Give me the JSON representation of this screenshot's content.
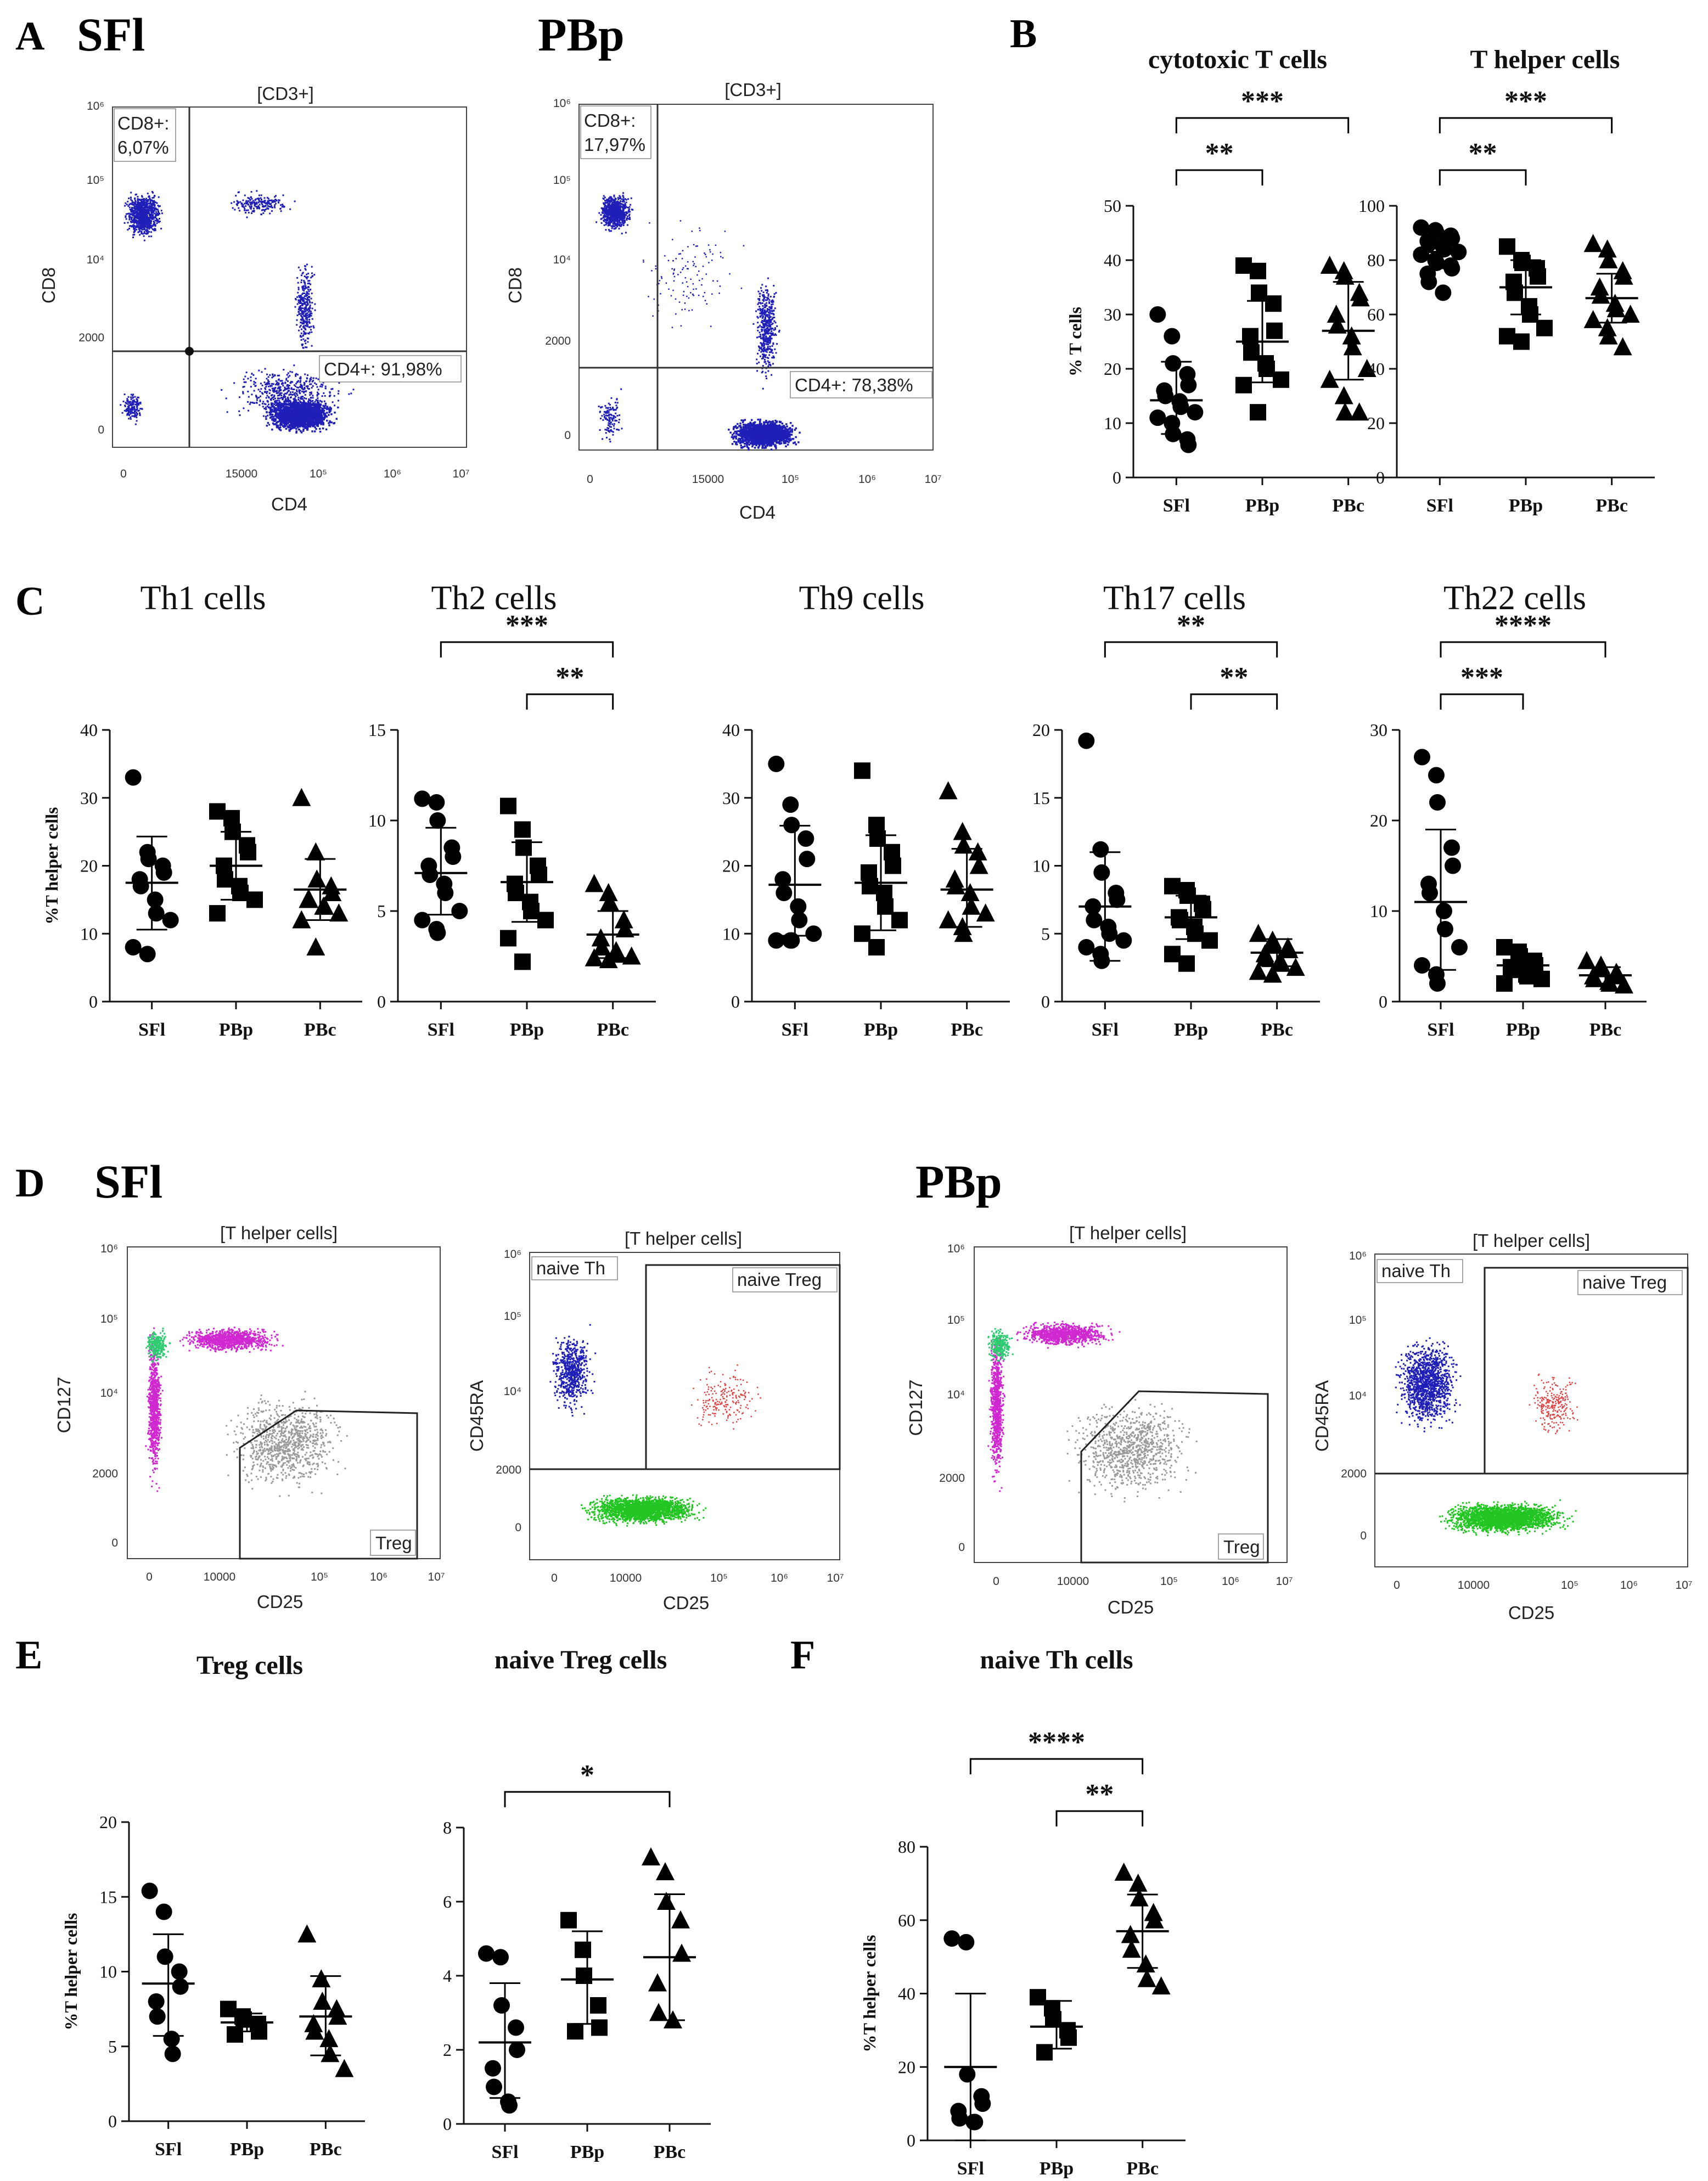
{
  "panel_labels": {
    "A": "A",
    "B": "B",
    "C": "C",
    "D": "D",
    "E": "E",
    "F": "F"
  },
  "flow": {
    "titleA_sfl": "SFl",
    "titleA_pbp": "PBp",
    "titleD_sfl": "SFl",
    "titleD_pbp": "PBp",
    "cd3_gate": "[CD3+]",
    "th_gate": "[T helper cells]",
    "cd8_gate_sfl": "CD8+:",
    "cd8_val_sfl": "6,07%",
    "cd8_gate_pbp": "CD8+:",
    "cd8_val_pbp": "17,97%",
    "cd4_gate_sfl": "CD4+: 91,98%",
    "cd4_gate_pbp": "CD4+: 78,38%",
    "treg_gate": "Treg",
    "naive_th_gate": "naive Th",
    "naive_treg_gate": "naive Treg",
    "axis_cd4": "CD4",
    "axis_cd8": "CD8",
    "axis_cd25": "CD25",
    "axis_cd127": "CD127",
    "axis_cd45ra": "CD45RA",
    "ticks_y": [
      "10⁶",
      "10⁵",
      "10⁴",
      "2000",
      "0"
    ],
    "ticks_x": [
      "0",
      "15000",
      "10⁵",
      "10⁶",
      "10⁷"
    ],
    "ticks_x_d": [
      "0",
      "10000",
      "10⁵",
      "10⁶",
      "10⁷"
    ],
    "colors": {
      "dots": "#1f1fb8",
      "green": "#22c522",
      "red": "#e04040",
      "magenta": "#d028d0",
      "gray": "#9a9a9a"
    }
  },
  "chart_data": [
    {
      "type": "scatter",
      "id": "B1",
      "title": "cytotoxic T cells",
      "ylabel": "% T cells",
      "ylim": [
        0,
        50
      ],
      "yticks": [
        0,
        10,
        20,
        30,
        40,
        50
      ],
      "categories": [
        "SFl",
        "PBp",
        "PBc"
      ],
      "series": [
        {
          "marker": "circle",
          "values": [
            30,
            26,
            21,
            19,
            17,
            16,
            15,
            14,
            13,
            12,
            11,
            10,
            8,
            7,
            6
          ],
          "mean": 14.2,
          "sd": [
            8.0,
            21.3
          ]
        },
        {
          "marker": "square",
          "values": [
            39,
            38,
            34,
            32,
            27,
            26,
            23,
            21,
            20,
            18,
            17,
            12
          ],
          "mean": 25,
          "sd": [
            17.5,
            32.5
          ]
        },
        {
          "marker": "triangle",
          "values": [
            39,
            38,
            37,
            34,
            33,
            30,
            28,
            26,
            24,
            20,
            18,
            15,
            12,
            12
          ],
          "mean": 27,
          "sd": [
            18,
            36
          ]
        }
      ],
      "significance": [
        {
          "from": 0,
          "to": 1,
          "label": "**"
        },
        {
          "from": 0,
          "to": 2,
          "label": "***"
        }
      ]
    },
    {
      "type": "scatter",
      "id": "B2",
      "title": "T helper cells",
      "ylabel": "",
      "ylim": [
        0,
        100
      ],
      "yticks": [
        0,
        20,
        40,
        60,
        80,
        100
      ],
      "categories": [
        "SFl",
        "PBp",
        "PBc"
      ],
      "series": [
        {
          "marker": "circle",
          "values": [
            92,
            91,
            90,
            89,
            88,
            87,
            86,
            85,
            84,
            83,
            82,
            80,
            79,
            78,
            77,
            75,
            72,
            68
          ],
          "mean": 83,
          "sd": [
            77,
            89
          ]
        },
        {
          "marker": "square",
          "values": [
            85,
            80,
            79,
            77,
            74,
            72,
            68,
            63,
            60,
            55,
            52,
            50
          ],
          "mean": 70,
          "sd": [
            60,
            80
          ]
        },
        {
          "marker": "triangle",
          "values": [
            86,
            84,
            80,
            76,
            74,
            70,
            67,
            64,
            62,
            60,
            58,
            55,
            52,
            48
          ],
          "mean": 66,
          "sd": [
            57,
            75
          ]
        }
      ],
      "significance": [
        {
          "from": 0,
          "to": 1,
          "label": "**"
        },
        {
          "from": 0,
          "to": 2,
          "label": "***"
        }
      ]
    },
    {
      "type": "scatter",
      "id": "C1",
      "title": "Th1 cells",
      "ylabel": "%T helper cells",
      "ylim": [
        0,
        40
      ],
      "yticks": [
        0,
        10,
        20,
        30,
        40
      ],
      "categories": [
        "SFl",
        "PBp",
        "PBc"
      ],
      "series": [
        {
          "marker": "circle",
          "values": [
            33,
            22,
            21,
            20,
            19,
            18,
            17,
            15,
            13,
            12,
            8,
            7
          ],
          "mean": 17.5,
          "sd": [
            10.6,
            24.3
          ]
        },
        {
          "marker": "square",
          "values": [
            28,
            27,
            25,
            23,
            22,
            20,
            18,
            17,
            16,
            15,
            13
          ],
          "mean": 20,
          "sd": [
            15,
            25
          ]
        },
        {
          "marker": "triangle",
          "values": [
            30,
            22,
            18,
            17,
            16,
            15,
            15,
            14,
            14,
            13,
            12,
            8
          ],
          "mean": 16.5,
          "sd": [
            12,
            21
          ]
        }
      ],
      "significance": []
    },
    {
      "type": "scatter",
      "id": "C2",
      "title": "Th2 cells",
      "ylabel": "",
      "ylim": [
        0,
        15
      ],
      "yticks": [
        0,
        5,
        10,
        15
      ],
      "categories": [
        "SFl",
        "PBp",
        "PBc"
      ],
      "series": [
        {
          "marker": "circle",
          "values": [
            11.2,
            11,
            10,
            8.5,
            8,
            7.5,
            7,
            6.5,
            6,
            5,
            4.5,
            4,
            3.8
          ],
          "mean": 7.1,
          "sd": [
            4.8,
            9.6
          ]
        },
        {
          "marker": "square",
          "values": [
            10.8,
            9.5,
            8.5,
            7.5,
            7,
            6.5,
            6,
            5.5,
            5,
            4.5,
            3.5,
            2.2
          ],
          "mean": 6.6,
          "sd": [
            4.4,
            8.8
          ]
        },
        {
          "marker": "triangle",
          "values": [
            6.5,
            6,
            5.5,
            4.5,
            4,
            3.5,
            3,
            2.8,
            2.6,
            2.5,
            2.4,
            2.3
          ],
          "mean": 3.7,
          "sd": [
            2.4,
            5.0
          ]
        }
      ],
      "significance": [
        {
          "from": 1,
          "to": 2,
          "label": "**"
        },
        {
          "from": 0,
          "to": 2,
          "label": "***"
        }
      ]
    },
    {
      "type": "scatter",
      "id": "C3",
      "title": "Th9 cells",
      "ylabel": "",
      "ylim": [
        0,
        40
      ],
      "yticks": [
        0,
        10,
        20,
        30,
        40
      ],
      "categories": [
        "SFl",
        "PBp",
        "PBc"
      ],
      "series": [
        {
          "marker": "circle",
          "values": [
            35,
            29,
            26,
            24,
            21,
            18,
            16,
            14,
            12,
            10,
            9,
            9,
            9
          ],
          "mean": 17.2,
          "sd": [
            9.7,
            25.9
          ]
        },
        {
          "marker": "square",
          "values": [
            34,
            26,
            24,
            22,
            20,
            19,
            17,
            16,
            14,
            12,
            10,
            8
          ],
          "mean": 17.5,
          "sd": [
            10.5,
            24.5
          ]
        },
        {
          "marker": "triangle",
          "values": [
            31,
            25,
            23,
            22,
            20,
            18,
            17,
            16,
            14,
            13,
            12,
            11,
            10
          ],
          "mean": 16.5,
          "sd": [
            11,
            22.5
          ]
        }
      ],
      "significance": []
    },
    {
      "type": "scatter",
      "id": "C4",
      "title": "Th17 cells",
      "ylabel": "",
      "ylim": [
        0,
        20
      ],
      "yticks": [
        0,
        5,
        10,
        15,
        20
      ],
      "categories": [
        "SFl",
        "PBp",
        "PBc"
      ],
      "series": [
        {
          "marker": "circle",
          "values": [
            19.2,
            11.2,
            9.5,
            8,
            7.5,
            7,
            6,
            5.5,
            5,
            4.5,
            4,
            3.5,
            3
          ],
          "mean": 7,
          "sd": [
            3,
            11
          ]
        },
        {
          "marker": "square",
          "values": [
            8.5,
            8.2,
            7.8,
            7.2,
            6.8,
            6.2,
            6,
            5.5,
            5,
            4.5,
            3.5,
            2.8
          ],
          "mean": 6.2,
          "sd": [
            4.6,
            7.8
          ]
        },
        {
          "marker": "triangle",
          "values": [
            5,
            4.5,
            4.2,
            4,
            3.8,
            3.5,
            3.2,
            3,
            2.8,
            2.5,
            2.2,
            2
          ],
          "mean": 3.6,
          "sd": [
            2.6,
            4.6
          ]
        }
      ],
      "significance": [
        {
          "from": 1,
          "to": 2,
          "label": "**"
        },
        {
          "from": 0,
          "to": 2,
          "label": "**"
        }
      ]
    },
    {
      "type": "scatter",
      "id": "C5",
      "title": "Th22 cells",
      "ylabel": "",
      "ylim": [
        0,
        30
      ],
      "yticks": [
        0,
        10,
        20,
        30
      ],
      "categories": [
        "SFl",
        "PBp",
        "PBc"
      ],
      "series": [
        {
          "marker": "circle",
          "values": [
            27,
            25,
            22,
            17,
            15,
            13,
            12,
            10,
            8,
            6,
            4,
            3,
            2
          ],
          "mean": 11,
          "sd": [
            3.5,
            19
          ]
        },
        {
          "marker": "square",
          "values": [
            6,
            5.5,
            5,
            4.5,
            4,
            3.8,
            3.5,
            3,
            2.8,
            2.5,
            2
          ],
          "mean": 4,
          "sd": [
            2.7,
            5.3
          ]
        },
        {
          "marker": "triangle",
          "values": [
            4.5,
            4,
            3.6,
            3.2,
            3,
            2.8,
            2.5,
            2.2,
            2,
            1.8
          ],
          "mean": 2.9,
          "sd": [
            2,
            3.8
          ]
        }
      ],
      "significance": [
        {
          "from": 0,
          "to": 1,
          "label": "***"
        },
        {
          "from": 0,
          "to": 2,
          "label": "****"
        }
      ]
    },
    {
      "type": "scatter",
      "id": "E1",
      "title": "Treg cells",
      "ylabel": "%T helper cells",
      "ylim": [
        0,
        20
      ],
      "yticks": [
        0,
        5,
        10,
        15,
        20
      ],
      "categories": [
        "SFl",
        "PBp",
        "PBc"
      ],
      "series": [
        {
          "marker": "circle",
          "values": [
            15.4,
            14,
            11,
            10,
            9,
            8,
            7,
            5.5,
            4.5
          ],
          "mean": 9.2,
          "sd": [
            5.7,
            12.5
          ]
        },
        {
          "marker": "square",
          "values": [
            7.5,
            7,
            6.8,
            6.5,
            6,
            5.8
          ],
          "mean": 6.6,
          "sd": [
            6,
            7.2
          ]
        },
        {
          "marker": "triangle",
          "values": [
            12.5,
            9.5,
            8,
            7.5,
            7,
            6.5,
            6,
            5.5,
            4.5,
            3.5
          ],
          "mean": 7,
          "sd": [
            4.4,
            9.7
          ]
        }
      ],
      "significance": []
    },
    {
      "type": "scatter",
      "id": "E2",
      "title": "naive Treg cells",
      "ylabel": "",
      "ylim": [
        0,
        8
      ],
      "yticks": [
        0,
        2,
        4,
        6,
        8
      ],
      "categories": [
        "SFl",
        "PBp",
        "PBc"
      ],
      "series": [
        {
          "marker": "circle",
          "values": [
            4.6,
            4.5,
            3.2,
            2.6,
            2,
            1.5,
            1,
            0.6,
            0.5
          ],
          "mean": 2.2,
          "sd": [
            0.7,
            3.8
          ]
        },
        {
          "marker": "square",
          "values": [
            5.5,
            4.7,
            4,
            3.2,
            2.6,
            2.5
          ],
          "mean": 3.9,
          "sd": [
            2.7,
            5.2
          ]
        },
        {
          "marker": "triangle",
          "values": [
            7.2,
            6.8,
            6,
            5.5,
            4.6,
            3.8,
            3,
            2.8
          ],
          "mean": 4.5,
          "sd": [
            2.8,
            6.2
          ]
        }
      ],
      "significance": [
        {
          "from": 0,
          "to": 2,
          "label": "*"
        }
      ]
    },
    {
      "type": "scatter",
      "id": "F1",
      "title": "naive Th cells",
      "ylabel": "%T helper cells",
      "ylim": [
        0,
        80
      ],
      "yticks": [
        0,
        20,
        40,
        60,
        80
      ],
      "categories": [
        "SFl",
        "PBp",
        "PBc"
      ],
      "series": [
        {
          "marker": "circle",
          "values": [
            55,
            54,
            18,
            12,
            10,
            8,
            6,
            5,
            5
          ],
          "mean": 20,
          "sd": [
            0,
            40
          ]
        },
        {
          "marker": "square",
          "values": [
            39,
            36,
            33,
            30,
            28,
            24
          ],
          "mean": 31,
          "sd": [
            25,
            38
          ]
        },
        {
          "marker": "triangle",
          "values": [
            73,
            70,
            66,
            62,
            60,
            56,
            52,
            48,
            44,
            42
          ],
          "mean": 57,
          "sd": [
            47,
            67
          ]
        }
      ],
      "significance": [
        {
          "from": 1,
          "to": 2,
          "label": "**"
        },
        {
          "from": 0,
          "to": 2,
          "label": "****"
        }
      ]
    }
  ]
}
